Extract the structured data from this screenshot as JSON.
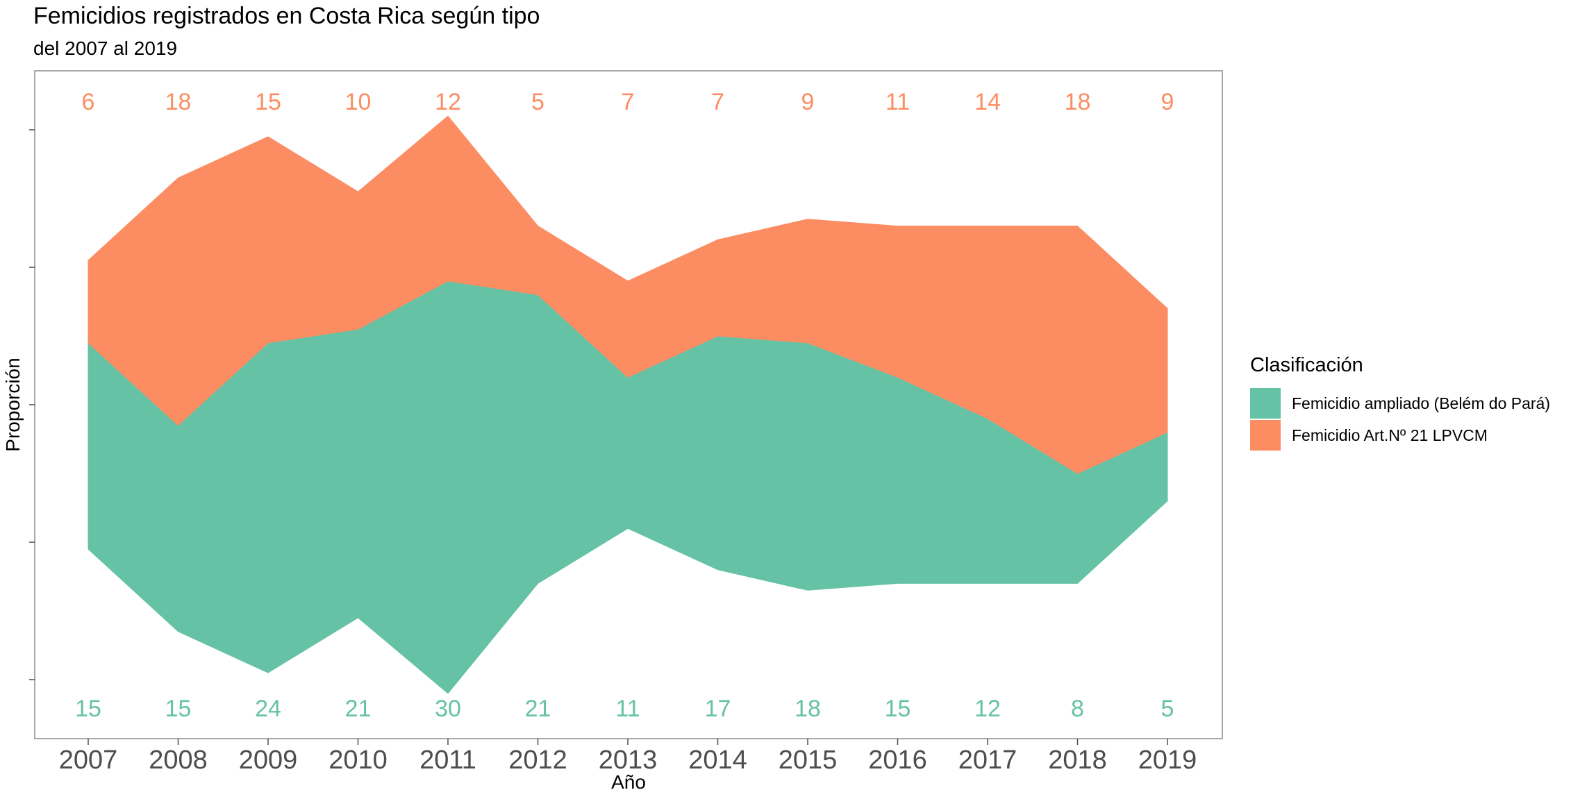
{
  "title": "Femicidios registrados en Costa Rica según tipo",
  "subtitle": "del 2007 al 2019",
  "chart_data": {
    "type": "area",
    "title": "Femicidios registrados en Costa Rica según tipo",
    "subtitle": "del 2007 al 2019",
    "xlabel": "Año",
    "ylabel": "Proporción",
    "categories": [
      "2007",
      "2008",
      "2009",
      "2010",
      "2011",
      "2012",
      "2013",
      "2014",
      "2015",
      "2016",
      "2017",
      "2018",
      "2019"
    ],
    "series": [
      {
        "name": "Femicidio ampliado (Belém do Pará)",
        "color": "#66c2a5",
        "values": [
          15,
          15,
          24,
          21,
          30,
          21,
          11,
          17,
          18,
          15,
          12,
          8,
          5
        ]
      },
      {
        "name": "Femicidio Art.Nº 21 LPVCM",
        "color": "#fc8d62",
        "values": [
          6,
          18,
          15,
          10,
          12,
          5,
          7,
          7,
          9,
          11,
          14,
          18,
          9
        ]
      }
    ],
    "legend": {
      "title": "Clasificación",
      "position": "right"
    },
    "grid": false
  }
}
